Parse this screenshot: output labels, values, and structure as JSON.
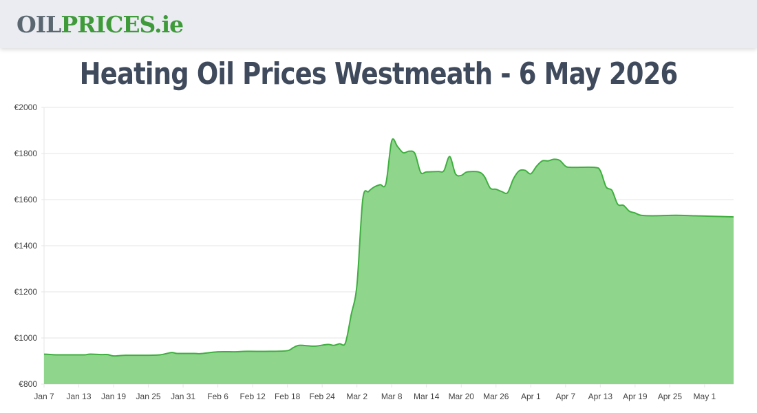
{
  "header": {
    "logo_oil": "OIL",
    "logo_prices": "PRICES",
    "logo_ie": ".ie"
  },
  "page_title": "Heating Oil Prices Westmeath - 6 May 2026",
  "colors": {
    "line": "#3fae3f",
    "fill": "#8fd68c",
    "grid": "#e6e6e6",
    "title": "#3f4a5c",
    "logo_grey": "#5b6770",
    "logo_green": "#3f9a3a"
  },
  "chart_data": {
    "type": "area",
    "title": "",
    "xlabel": "",
    "ylabel": "",
    "ylim": [
      800,
      2000
    ],
    "y_ticks": [
      800,
      1000,
      1200,
      1400,
      1600,
      1800,
      2000
    ],
    "y_tick_prefix": "€",
    "grid": true,
    "x_tick_labels": [
      "Jan 7",
      "Jan 13",
      "Jan 19",
      "Jan 25",
      "Jan 31",
      "Feb 6",
      "Feb 12",
      "Feb 18",
      "Feb 24",
      "Mar 2",
      "Mar 8",
      "Mar 14",
      "Mar 20",
      "Mar 26",
      "Apr 1",
      "Apr 7",
      "Apr 13",
      "Apr 19",
      "Apr 25",
      "May 1"
    ],
    "x_start": "2026-01-07",
    "x_end": "2026-05-06",
    "series": [
      {
        "name": "",
        "points": [
          [
            "2026-01-07",
            930
          ],
          [
            "2026-01-09",
            927
          ],
          [
            "2026-01-12",
            927
          ],
          [
            "2026-01-14",
            927
          ],
          [
            "2026-01-15",
            930
          ],
          [
            "2026-01-17",
            928
          ],
          [
            "2026-01-18",
            928
          ],
          [
            "2026-01-19",
            922
          ],
          [
            "2026-01-21",
            925
          ],
          [
            "2026-01-24",
            925
          ],
          [
            "2026-01-27",
            927
          ],
          [
            "2026-01-29",
            937
          ],
          [
            "2026-01-30",
            933
          ],
          [
            "2026-02-02",
            933
          ],
          [
            "2026-02-03",
            932
          ],
          [
            "2026-02-06",
            940
          ],
          [
            "2026-02-09",
            940
          ],
          [
            "2026-02-11",
            942
          ],
          [
            "2026-02-15",
            942
          ],
          [
            "2026-02-18",
            945
          ],
          [
            "2026-02-19",
            958
          ],
          [
            "2026-02-20",
            968
          ],
          [
            "2026-02-22",
            965
          ],
          [
            "2026-02-23",
            965
          ],
          [
            "2026-02-25",
            972
          ],
          [
            "2026-02-26",
            968
          ],
          [
            "2026-02-27",
            975
          ],
          [
            "2026-02-28",
            978
          ],
          [
            "2026-03-01",
            1100
          ],
          [
            "2026-03-02",
            1230
          ],
          [
            "2026-03-03",
            1600
          ],
          [
            "2026-03-04",
            1635
          ],
          [
            "2026-03-05",
            1655
          ],
          [
            "2026-03-06",
            1665
          ],
          [
            "2026-03-07",
            1670
          ],
          [
            "2026-03-08",
            1855
          ],
          [
            "2026-03-09",
            1830
          ],
          [
            "2026-03-10",
            1803
          ],
          [
            "2026-03-11",
            1810
          ],
          [
            "2026-03-12",
            1800
          ],
          [
            "2026-03-13",
            1718
          ],
          [
            "2026-03-14",
            1720
          ],
          [
            "2026-03-16",
            1722
          ],
          [
            "2026-03-17",
            1725
          ],
          [
            "2026-03-18",
            1787
          ],
          [
            "2026-03-19",
            1712
          ],
          [
            "2026-03-20",
            1705
          ],
          [
            "2026-03-21",
            1720
          ],
          [
            "2026-03-23",
            1720
          ],
          [
            "2026-03-24",
            1700
          ],
          [
            "2026-03-25",
            1650
          ],
          [
            "2026-03-26",
            1645
          ],
          [
            "2026-03-27",
            1635
          ],
          [
            "2026-03-28",
            1630
          ],
          [
            "2026-03-29",
            1690
          ],
          [
            "2026-03-30",
            1725
          ],
          [
            "2026-03-31",
            1727
          ],
          [
            "2026-04-01",
            1712
          ],
          [
            "2026-04-02",
            1745
          ],
          [
            "2026-04-03",
            1768
          ],
          [
            "2026-04-04",
            1768
          ],
          [
            "2026-04-05",
            1775
          ],
          [
            "2026-04-06",
            1770
          ],
          [
            "2026-04-07",
            1745
          ],
          [
            "2026-04-08",
            1740
          ],
          [
            "2026-04-12",
            1740
          ],
          [
            "2026-04-13",
            1725
          ],
          [
            "2026-04-14",
            1655
          ],
          [
            "2026-04-15",
            1640
          ],
          [
            "2026-04-16",
            1580
          ],
          [
            "2026-04-17",
            1575
          ],
          [
            "2026-04-18",
            1550
          ],
          [
            "2026-04-19",
            1542
          ],
          [
            "2026-04-20",
            1532
          ],
          [
            "2026-04-22",
            1530
          ],
          [
            "2026-04-26",
            1532
          ],
          [
            "2026-04-29",
            1530
          ],
          [
            "2026-05-02",
            1528
          ],
          [
            "2026-05-06",
            1525
          ]
        ]
      }
    ]
  }
}
